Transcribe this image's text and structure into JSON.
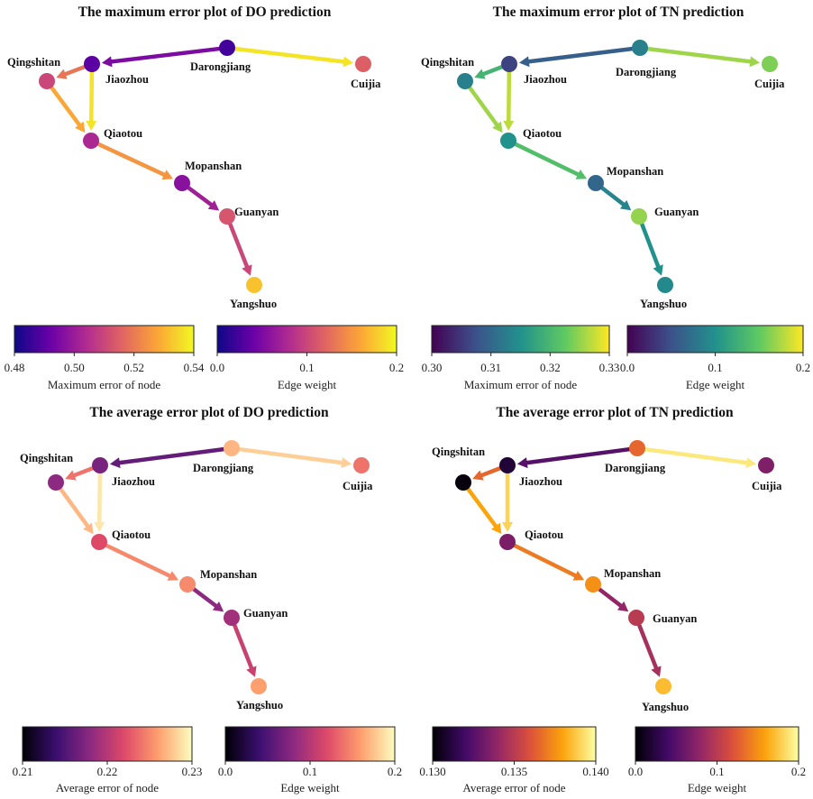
{
  "colormaps": {
    "plasma": [
      "#0d0887",
      "#6a00a8",
      "#b12a90",
      "#e16462",
      "#fca636",
      "#f0f921"
    ],
    "viridis": [
      "#440154",
      "#3b528b",
      "#21918c",
      "#5ec962",
      "#fde725"
    ],
    "magma": [
      "#000004",
      "#3b0f70",
      "#8c2981",
      "#de4968",
      "#fe9f6d",
      "#fcfdbf"
    ],
    "inferno": [
      "#000004",
      "#420a68",
      "#932667",
      "#dd513a",
      "#fca50a",
      "#fcffa4"
    ]
  },
  "chart_data": [
    {
      "type": "network",
      "title": "The maximum error plot of DO prediction",
      "node_cmap": "plasma",
      "edge_cmap": "plasma",
      "node_colorbar": {
        "label": "Maximum error of node",
        "range": [
          0.48,
          0.54
        ],
        "ticks": [
          "0.48",
          "0.50",
          "0.52",
          "0.54"
        ]
      },
      "edge_colorbar": {
        "label": "Edge weight",
        "range": [
          0.0,
          0.2
        ],
        "ticks": [
          "0.0",
          "0.1",
          "0.2"
        ]
      },
      "nodes": [
        {
          "name": "Darongjiang",
          "value": 0.487
        },
        {
          "name": "Cuijia",
          "value": 0.515
        },
        {
          "name": "Jiaozhou",
          "value": 0.49
        },
        {
          "name": "Qingshitan",
          "value": 0.51
        },
        {
          "name": "Qiaotou",
          "value": 0.503
        },
        {
          "name": "Mopanshan",
          "value": 0.497
        },
        {
          "name": "Guanyan",
          "value": 0.513
        },
        {
          "name": "Yangshuo",
          "value": 0.532
        }
      ],
      "edges": [
        {
          "source": "Darongjiang",
          "target": "Jiaozhou",
          "weight": 0.05
        },
        {
          "source": "Darongjiang",
          "target": "Cuijia",
          "weight": 0.19
        },
        {
          "source": "Jiaozhou",
          "target": "Qingshitan",
          "weight": 0.13
        },
        {
          "source": "Jiaozhou",
          "target": "Qiaotou",
          "weight": 0.19
        },
        {
          "source": "Qingshitan",
          "target": "Qiaotou",
          "weight": 0.16
        },
        {
          "source": "Qiaotou",
          "target": "Mopanshan",
          "weight": 0.15
        },
        {
          "source": "Mopanshan",
          "target": "Guanyan",
          "weight": 0.07
        },
        {
          "source": "Guanyan",
          "target": "Yangshuo",
          "weight": 0.1
        }
      ]
    },
    {
      "type": "network",
      "title": "The maximum error plot of TN prediction",
      "node_cmap": "viridis",
      "edge_cmap": "viridis",
      "node_colorbar": {
        "label": "Maximum error of node",
        "range": [
          0.3,
          0.33
        ],
        "ticks": [
          "0.30",
          "0.31",
          "0.32",
          "0.33"
        ]
      },
      "edge_colorbar": {
        "label": "Edge weight",
        "range": [
          0.0,
          0.2
        ],
        "ticks": [
          "0.0",
          "0.1",
          "0.2"
        ]
      },
      "nodes": [
        {
          "name": "Darongjiang",
          "value": 0.313
        },
        {
          "name": "Cuijia",
          "value": 0.324
        },
        {
          "name": "Jiaozhou",
          "value": 0.306
        },
        {
          "name": "Qingshitan",
          "value": 0.313
        },
        {
          "name": "Qiaotou",
          "value": 0.315
        },
        {
          "name": "Mopanshan",
          "value": 0.31
        },
        {
          "name": "Guanyan",
          "value": 0.325
        },
        {
          "name": "Yangshuo",
          "value": 0.314
        }
      ],
      "edges": [
        {
          "source": "Darongjiang",
          "target": "Jiaozhou",
          "weight": 0.06
        },
        {
          "source": "Darongjiang",
          "target": "Cuijia",
          "weight": 0.17
        },
        {
          "source": "Jiaozhou",
          "target": "Qingshitan",
          "weight": 0.13
        },
        {
          "source": "Jiaozhou",
          "target": "Qiaotou",
          "weight": 0.18
        },
        {
          "source": "Qingshitan",
          "target": "Qiaotou",
          "weight": 0.17
        },
        {
          "source": "Qiaotou",
          "target": "Mopanshan",
          "weight": 0.14
        },
        {
          "source": "Mopanshan",
          "target": "Guanyan",
          "weight": 0.09
        },
        {
          "source": "Guanyan",
          "target": "Yangshuo",
          "weight": 0.1
        }
      ]
    },
    {
      "type": "network",
      "title": "The average error plot of DO prediction",
      "node_cmap": "magma",
      "edge_cmap": "magma",
      "node_colorbar": {
        "label": "Average error of node",
        "range": [
          0.21,
          0.23
        ],
        "ticks": [
          "0.21",
          "0.22",
          "0.23"
        ]
      },
      "edge_colorbar": {
        "label": "Edge weight",
        "range": [
          0.0,
          0.2
        ],
        "ticks": [
          "0.0",
          "0.1",
          "0.2"
        ]
      },
      "nodes": [
        {
          "name": "Darongjiang",
          "value": 0.227
        },
        {
          "name": "Cuijia",
          "value": 0.224
        },
        {
          "name": "Jiaozhou",
          "value": 0.217
        },
        {
          "name": "Qingshitan",
          "value": 0.218
        },
        {
          "name": "Qiaotou",
          "value": 0.222
        },
        {
          "name": "Mopanshan",
          "value": 0.225
        },
        {
          "name": "Guanyan",
          "value": 0.219
        },
        {
          "name": "Yangshuo",
          "value": 0.226
        }
      ],
      "edges": [
        {
          "source": "Darongjiang",
          "target": "Jiaozhou",
          "weight": 0.06
        },
        {
          "source": "Darongjiang",
          "target": "Cuijia",
          "weight": 0.18
        },
        {
          "source": "Jiaozhou",
          "target": "Qingshitan",
          "weight": 0.14
        },
        {
          "source": "Jiaozhou",
          "target": "Qiaotou",
          "weight": 0.19
        },
        {
          "source": "Qingshitan",
          "target": "Qiaotou",
          "weight": 0.17
        },
        {
          "source": "Qiaotou",
          "target": "Mopanshan",
          "weight": 0.15
        },
        {
          "source": "Mopanshan",
          "target": "Guanyan",
          "weight": 0.08
        },
        {
          "source": "Guanyan",
          "target": "Yangshuo",
          "weight": 0.11
        }
      ]
    },
    {
      "type": "network",
      "title": "The average error plot of TN prediction",
      "node_cmap": "inferno",
      "edge_cmap": "inferno",
      "node_colorbar": {
        "label": "Average error of node",
        "range": [
          0.13,
          0.14
        ],
        "ticks": [
          "0.130",
          "0.135",
          "0.140"
        ]
      },
      "edge_colorbar": {
        "label": "Edge weight",
        "range": [
          0.0,
          0.2
        ],
        "ticks": [
          "0.0",
          "0.1",
          "0.2"
        ]
      },
      "nodes": [
        {
          "name": "Darongjiang",
          "value": 0.1365
        },
        {
          "name": "Cuijia",
          "value": 0.1335
        },
        {
          "name": "Jiaozhou",
          "value": 0.131
        },
        {
          "name": "Qingshitan",
          "value": 0.1302
        },
        {
          "name": "Qiaotou",
          "value": 0.1334
        },
        {
          "name": "Mopanshan",
          "value": 0.1375
        },
        {
          "name": "Guanyan",
          "value": 0.135
        },
        {
          "name": "Yangshuo",
          "value": 0.1385
        }
      ],
      "edges": [
        {
          "source": "Darongjiang",
          "target": "Jiaozhou",
          "weight": 0.05
        },
        {
          "source": "Darongjiang",
          "target": "Cuijia",
          "weight": 0.19
        },
        {
          "source": "Jiaozhou",
          "target": "Qingshitan",
          "weight": 0.13
        },
        {
          "source": "Jiaozhou",
          "target": "Qiaotou",
          "weight": 0.18
        },
        {
          "source": "Qingshitan",
          "target": "Qiaotou",
          "weight": 0.16
        },
        {
          "source": "Qiaotou",
          "target": "Mopanshan",
          "weight": 0.14
        },
        {
          "source": "Mopanshan",
          "target": "Guanyan",
          "weight": 0.08
        },
        {
          "source": "Guanyan",
          "target": "Yangshuo",
          "weight": 0.09
        }
      ]
    }
  ]
}
